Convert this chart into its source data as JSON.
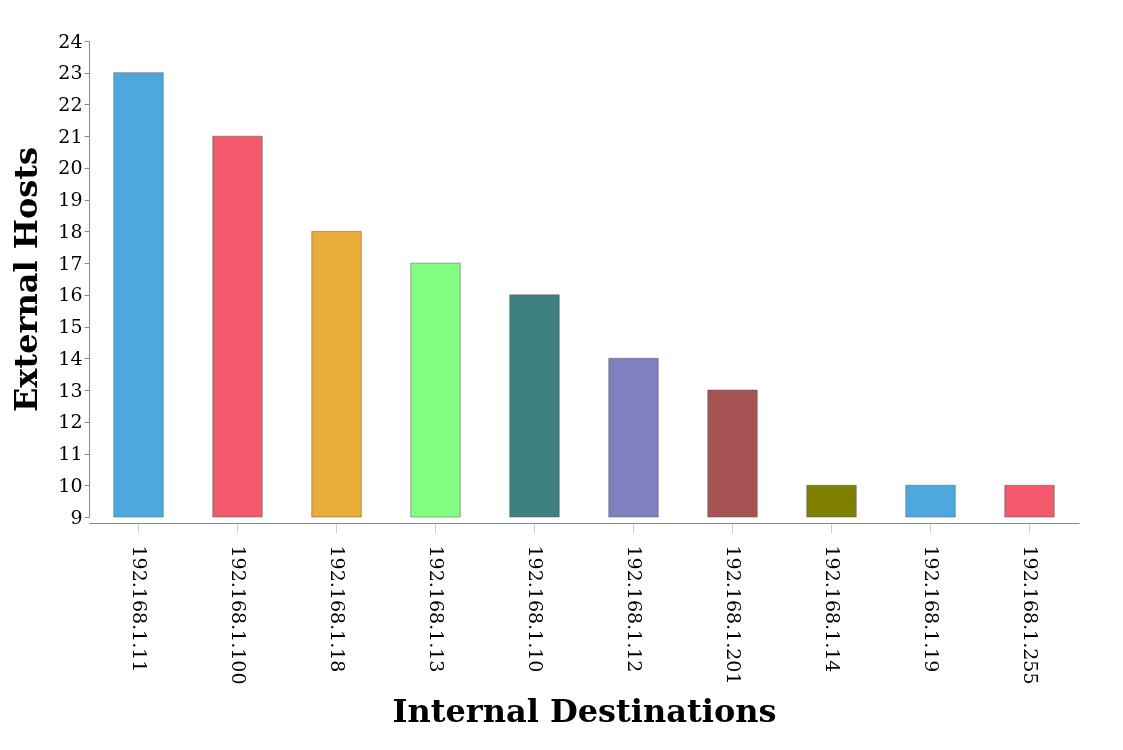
{
  "chart_data": {
    "type": "bar",
    "xlabel": "Internal Destinations",
    "ylabel": "External Hosts",
    "categories": [
      "192.168.1.11",
      "192.168.1.100",
      "192.168.1.18",
      "192.168.1.13",
      "192.168.1.10",
      "192.168.1.12",
      "192.168.1.201",
      "192.168.1.14",
      "192.168.1.19",
      "192.168.1.255"
    ],
    "values": [
      23,
      21,
      18,
      17,
      16,
      14,
      13,
      10,
      10,
      10
    ],
    "colors": [
      "#4fa8dd",
      "#f2596b",
      "#e8ac39",
      "#80ff80",
      "#3f8080",
      "#8080c0",
      "#a65353",
      "#808000",
      "#4fa8dd",
      "#f2596b"
    ],
    "ylim": [
      9,
      24
    ],
    "yticks": [
      9,
      10,
      11,
      12,
      13,
      14,
      15,
      16,
      17,
      18,
      19,
      20,
      21,
      22,
      23,
      24
    ],
    "grid": false
  }
}
